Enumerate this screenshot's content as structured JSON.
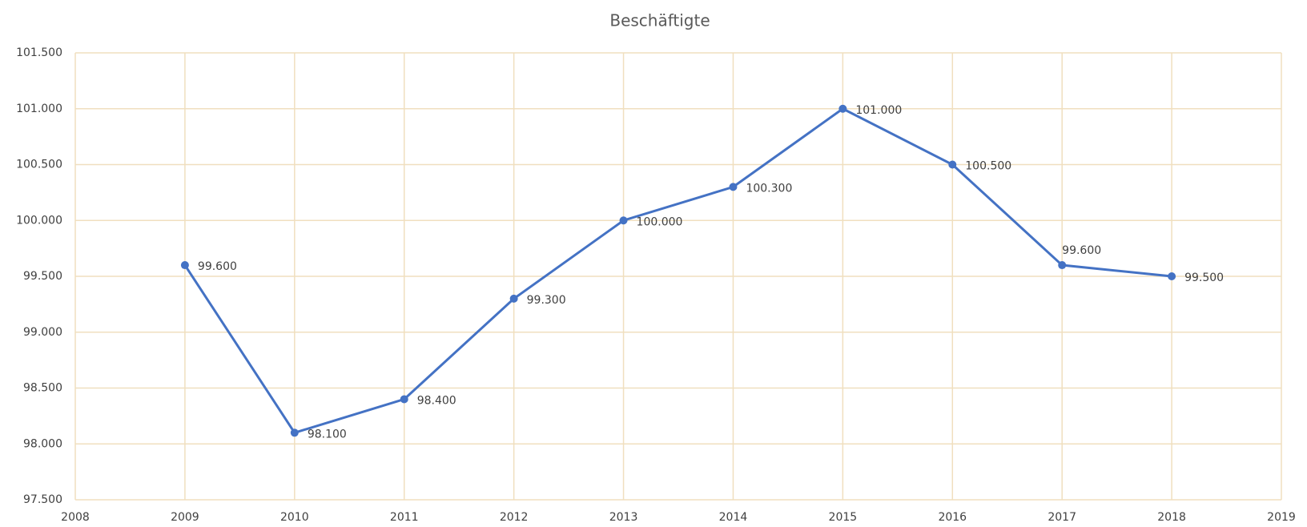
{
  "chart_data": {
    "type": "line",
    "title": "Beschäftigte",
    "x": [
      2009,
      2010,
      2011,
      2012,
      2013,
      2014,
      2015,
      2016,
      2017,
      2018
    ],
    "values": [
      99600,
      98100,
      98400,
      99300,
      100000,
      100300,
      101000,
      100500,
      99600,
      99500
    ],
    "value_labels": [
      "99.600",
      "98.100",
      "98.400",
      "99.300",
      "100.000",
      "100.300",
      "101.000",
      "100.500",
      "99.600",
      "99.500"
    ],
    "color": "#4472c4",
    "xlim": [
      2008,
      2019
    ],
    "xticks": [
      2008,
      2009,
      2010,
      2011,
      2012,
      2013,
      2014,
      2015,
      2016,
      2017,
      2018,
      2019
    ],
    "ylim": [
      97500,
      101500
    ],
    "yticks": [
      {
        "value": 97500,
        "label": "97.500"
      },
      {
        "value": 98000,
        "label": "98.000"
      },
      {
        "value": 98500,
        "label": "98.500"
      },
      {
        "value": 99000,
        "label": "99.000"
      },
      {
        "value": 99500,
        "label": "99.500"
      },
      {
        "value": 100000,
        "label": "100.000"
      },
      {
        "value": 100500,
        "label": "100.500"
      },
      {
        "value": 101000,
        "label": "101.000"
      },
      {
        "value": 101500,
        "label": "101.500"
      }
    ],
    "grid": true
  }
}
